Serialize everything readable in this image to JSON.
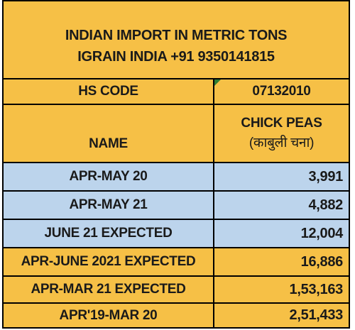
{
  "title": {
    "line1": "INDIAN IMPORT IN METRIC TONS",
    "line2": "IGRAIN INDIA +91 9350141815"
  },
  "hs_code": {
    "label": "HS CODE",
    "value": "07132010"
  },
  "name": {
    "label": "NAME",
    "value_line1": "CHICK PEAS",
    "value_line2": "(काबुली चना)"
  },
  "rows": [
    {
      "period": "APR-MAY 20",
      "value": "3,991",
      "highlight": "blue"
    },
    {
      "period": "APR-MAY 21",
      "value": "4,882",
      "highlight": "blue"
    },
    {
      "period": "JUNE 21 EXPECTED",
      "value": "12,004",
      "highlight": "blue"
    },
    {
      "period": "APR-JUNE 2021 EXPECTED",
      "value": "16,886",
      "highlight": "gold"
    },
    {
      "period": "APR-MAR 21 EXPECTED",
      "value": "1,53,163",
      "highlight": "gold"
    },
    {
      "period": "APR'19-MAR 20",
      "value": "2,51,433",
      "highlight": "gold"
    }
  ],
  "colors": {
    "gold": "#f6c046",
    "blue": "#bcd4ec",
    "border": "#000000"
  }
}
